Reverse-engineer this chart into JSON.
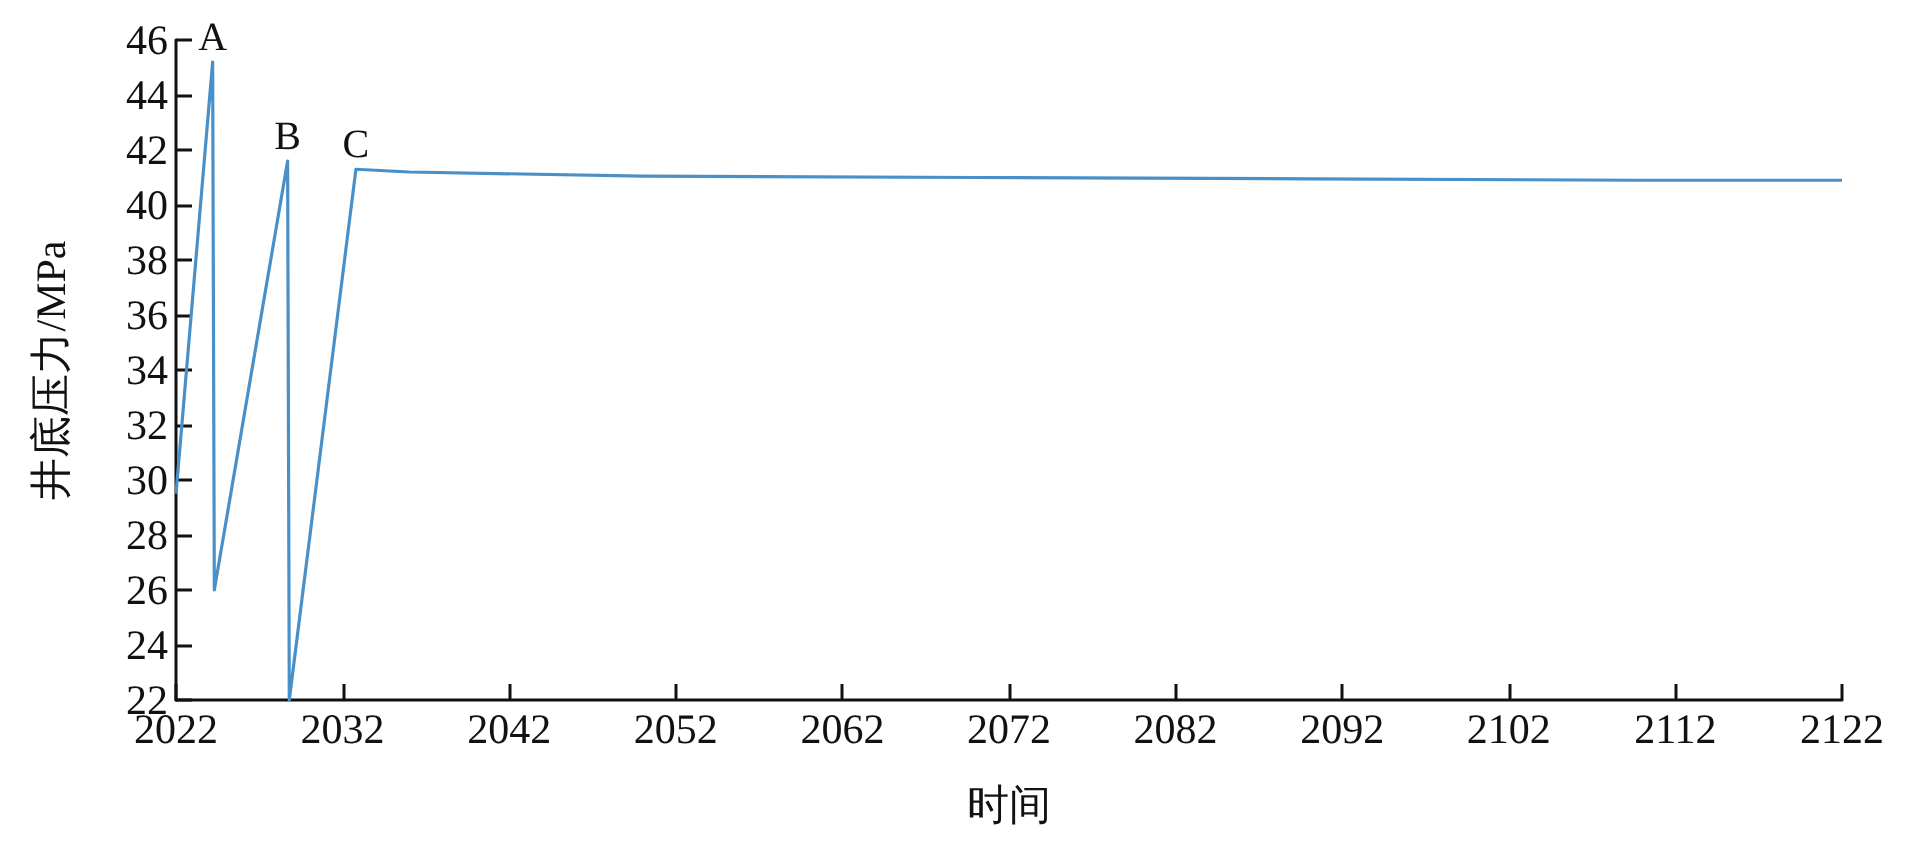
{
  "chart_data": {
    "type": "line",
    "xlabel": "时间",
    "ylabel": "井底压力/MPa",
    "x": [
      2022,
      2024.2,
      2024.3,
      2028.7,
      2028.8,
      2032.8,
      2036,
      2050,
      2070,
      2090,
      2110,
      2122
    ],
    "series": [
      {
        "color": "#4a90c8",
        "values": [
          29.5,
          45.2,
          26,
          41.6,
          22,
          41.3,
          41.2,
          41.05,
          41,
          40.95,
          40.9,
          40.9
        ]
      }
    ],
    "xlim": [
      2022,
      2122
    ],
    "xticks": [
      2022,
      2032,
      2042,
      2052,
      2062,
      2072,
      2082,
      2092,
      2102,
      2112,
      2122
    ],
    "ylim": [
      22,
      46
    ],
    "yticks": [
      22,
      24,
      26,
      28,
      30,
      32,
      34,
      36,
      38,
      40,
      42,
      44,
      46
    ],
    "annotations": [
      {
        "text": "A",
        "x": 2024.2,
        "y": 45.2
      },
      {
        "text": "B",
        "x": 2028.7,
        "y": 41.6
      },
      {
        "text": "C",
        "x": 2032.8,
        "y": 41.3
      }
    ],
    "grid": false,
    "marker": "none",
    "line_style": "solid"
  }
}
